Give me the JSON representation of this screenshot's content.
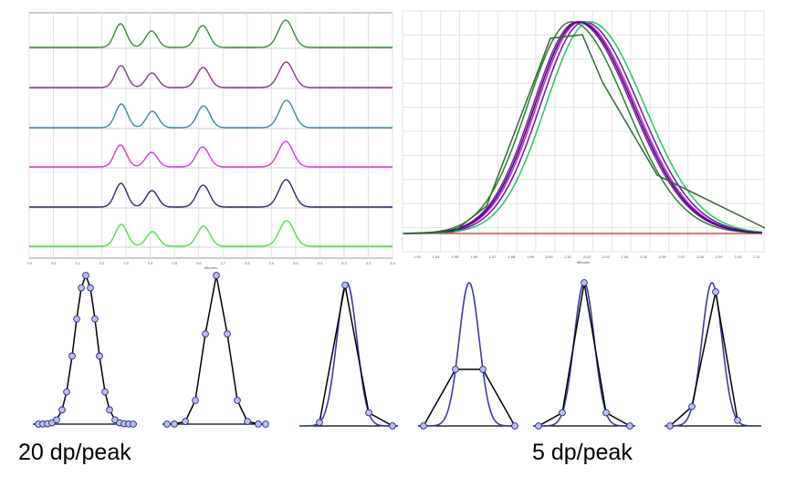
{
  "traces_panel": {
    "x_ticks": [
      "1.9",
      "2.0",
      "2.1",
      "2.2",
      "2.3",
      "2.4",
      "2.5",
      "2.6",
      "2.7",
      "2.8",
      "2.9",
      "3.0",
      "3.1",
      "3.2",
      "3.3",
      "3.4"
    ],
    "x_label": "Minutes",
    "trace_colors": [
      "#3a8a3a",
      "#8a3a8a",
      "#3a8a9a",
      "#d43ad4",
      "#2a2a6a",
      "#4ae04a"
    ]
  },
  "overlay_panel": {
    "x_ticks": [
      "1.93",
      "1.94",
      "1.95",
      "1.96",
      "1.97",
      "1.98",
      "1.99",
      "2.00",
      "2.01",
      "2.02",
      "2.03",
      "2.04",
      "2.05",
      "2.06",
      "2.07",
      "2.08",
      "2.09",
      "2.10",
      "2.11"
    ],
    "x_label": "Minutes",
    "trace_colors": [
      "#2e7d32",
      "#7b1fa2",
      "#c026d3",
      "#6a1b9a",
      "#22c55e",
      "#4b0082"
    ]
  },
  "captions": {
    "left": "20 dp/peak",
    "right": "5 dp/peak"
  },
  "colors": {
    "sampled_line": "#000000",
    "true_peak": "#3a3aa0",
    "sample_point_fill": "#b8c0f0",
    "sample_point_stroke": "#2a2a80",
    "baseline_overlay": "#b03030"
  }
}
